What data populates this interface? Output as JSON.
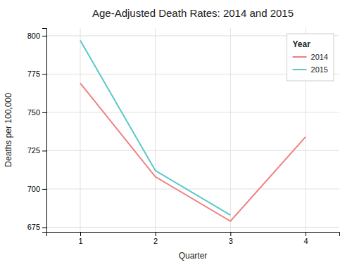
{
  "chart_data": {
    "type": "line",
    "title": "Age-Adjusted Death Rates: 2014 and 2015",
    "xlabel": "Quarter",
    "ylabel": "Deaths per 100,000",
    "legend_title": "Year",
    "x": [
      1,
      2,
      3,
      4
    ],
    "series": [
      {
        "name": "2014",
        "color": "#F08080",
        "values": [
          769,
          708,
          679,
          734
        ]
      },
      {
        "name": "2015",
        "color": "#5BC8C8",
        "values": [
          797,
          712,
          683,
          null
        ]
      }
    ],
    "xlim": [
      0.55,
      4.45
    ],
    "xticks": [
      1,
      2,
      3,
      4
    ],
    "ylim": [
      672,
      805
    ],
    "yticks": [
      675,
      700,
      725,
      750,
      775,
      800
    ],
    "grid": true,
    "legend": "upper right"
  }
}
